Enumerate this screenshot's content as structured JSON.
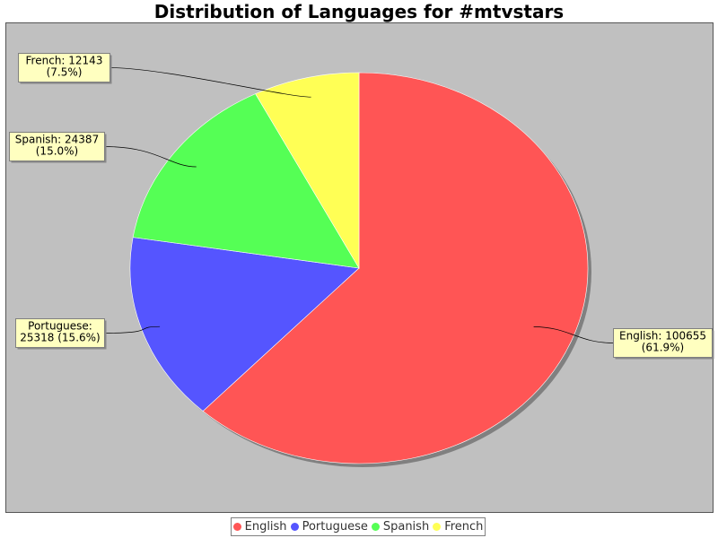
{
  "chart_data": {
    "type": "pie",
    "title": "Distribution of Languages for #mtvstars",
    "slices": [
      {
        "name": "English",
        "value": 100655,
        "percent": "61.9%",
        "color": "#ff5555",
        "label_lines": [
          "English: 100655",
          "(61.9%)"
        ]
      },
      {
        "name": "Portuguese",
        "value": 25318,
        "percent": "15.6%",
        "color": "#5555ff",
        "label_lines": [
          "Portuguese:",
          "25318 (15.6%)"
        ]
      },
      {
        "name": "Spanish",
        "value": 24387,
        "percent": "15.0%",
        "color": "#55ff55",
        "label_lines": [
          "Spanish: 24387",
          "(15.0%)"
        ]
      },
      {
        "name": "French",
        "value": 12143,
        "percent": "7.5%",
        "color": "#ffff55",
        "label_lines": [
          "French: 12143",
          "(7.5%)"
        ]
      }
    ],
    "legend": {
      "placement": "bottom",
      "entries": [
        "English",
        "Portuguese",
        "Spanish",
        "French"
      ]
    },
    "colors": {
      "plot_background": "#c0c0c0",
      "label_background": "#ffffc0",
      "shadow": "#808080"
    }
  }
}
